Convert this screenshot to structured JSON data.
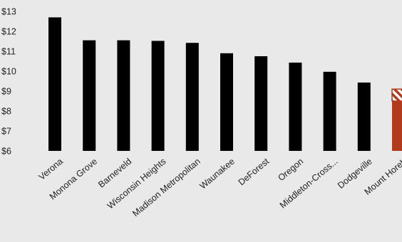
{
  "chart_data": {
    "type": "bar",
    "categories": [
      "Verona",
      "Monona Grove",
      "Barneveld",
      "Wisconsin Heights",
      "Madison Metropolitan",
      "Waunakee",
      "DeForest",
      "Oregon",
      "Middleton-Cross...",
      "Dodgeville",
      "Mount Horeb"
    ],
    "values": [
      12.7,
      11.55,
      11.55,
      11.52,
      11.42,
      10.9,
      10.75,
      10.43,
      9.97,
      9.43,
      9.1
    ],
    "highlight": {
      "category": "Mount Horeb",
      "color": "#b23a1d",
      "hatched_top_value": 8.5
    },
    "bar_color": "#000000",
    "ylim": [
      6,
      13
    ],
    "yticks": [
      6,
      7,
      8,
      9,
      10,
      11,
      12,
      13
    ],
    "ytick_labels": [
      "$6",
      "$7",
      "$8",
      "$9",
      "$10",
      "$11",
      "$12",
      "$13"
    ],
    "grid": false,
    "title": "",
    "xlabel": "",
    "ylabel": ""
  }
}
